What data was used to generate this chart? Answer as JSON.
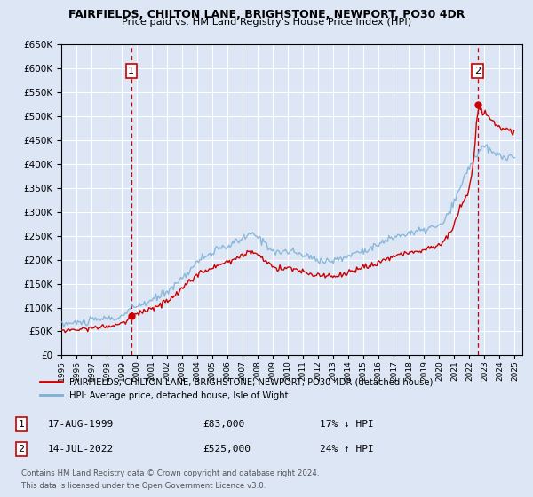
{
  "title": "FAIRFIELDS, CHILTON LANE, BRIGHSTONE, NEWPORT, PO30 4DR",
  "subtitle": "Price paid vs. HM Land Registry's House Price Index (HPI)",
  "background_color": "#dce6f5",
  "plot_bg_color": "#dce6f5",
  "ylim": [
    0,
    650000
  ],
  "yticks": [
    0,
    50000,
    100000,
    150000,
    200000,
    250000,
    300000,
    350000,
    400000,
    450000,
    500000,
    550000,
    600000,
    650000
  ],
  "xlim_start": 1995.0,
  "xlim_end": 2025.5,
  "sale1_year": 1999.63,
  "sale1_price": 83000,
  "sale2_year": 2022.54,
  "sale2_price": 525000,
  "sale1_label": "1",
  "sale2_label": "2",
  "legend_property": "FAIRFIELDS, CHILTON LANE, BRIGHSTONE, NEWPORT, PO30 4DR (detached house)",
  "legend_hpi": "HPI: Average price, detached house, Isle of Wight",
  "footer3": "Contains HM Land Registry data © Crown copyright and database right 2024.",
  "footer4": "This data is licensed under the Open Government Licence v3.0.",
  "red_color": "#cc0000",
  "blue_color": "#7bafd4",
  "grid_color": "#ffffff"
}
